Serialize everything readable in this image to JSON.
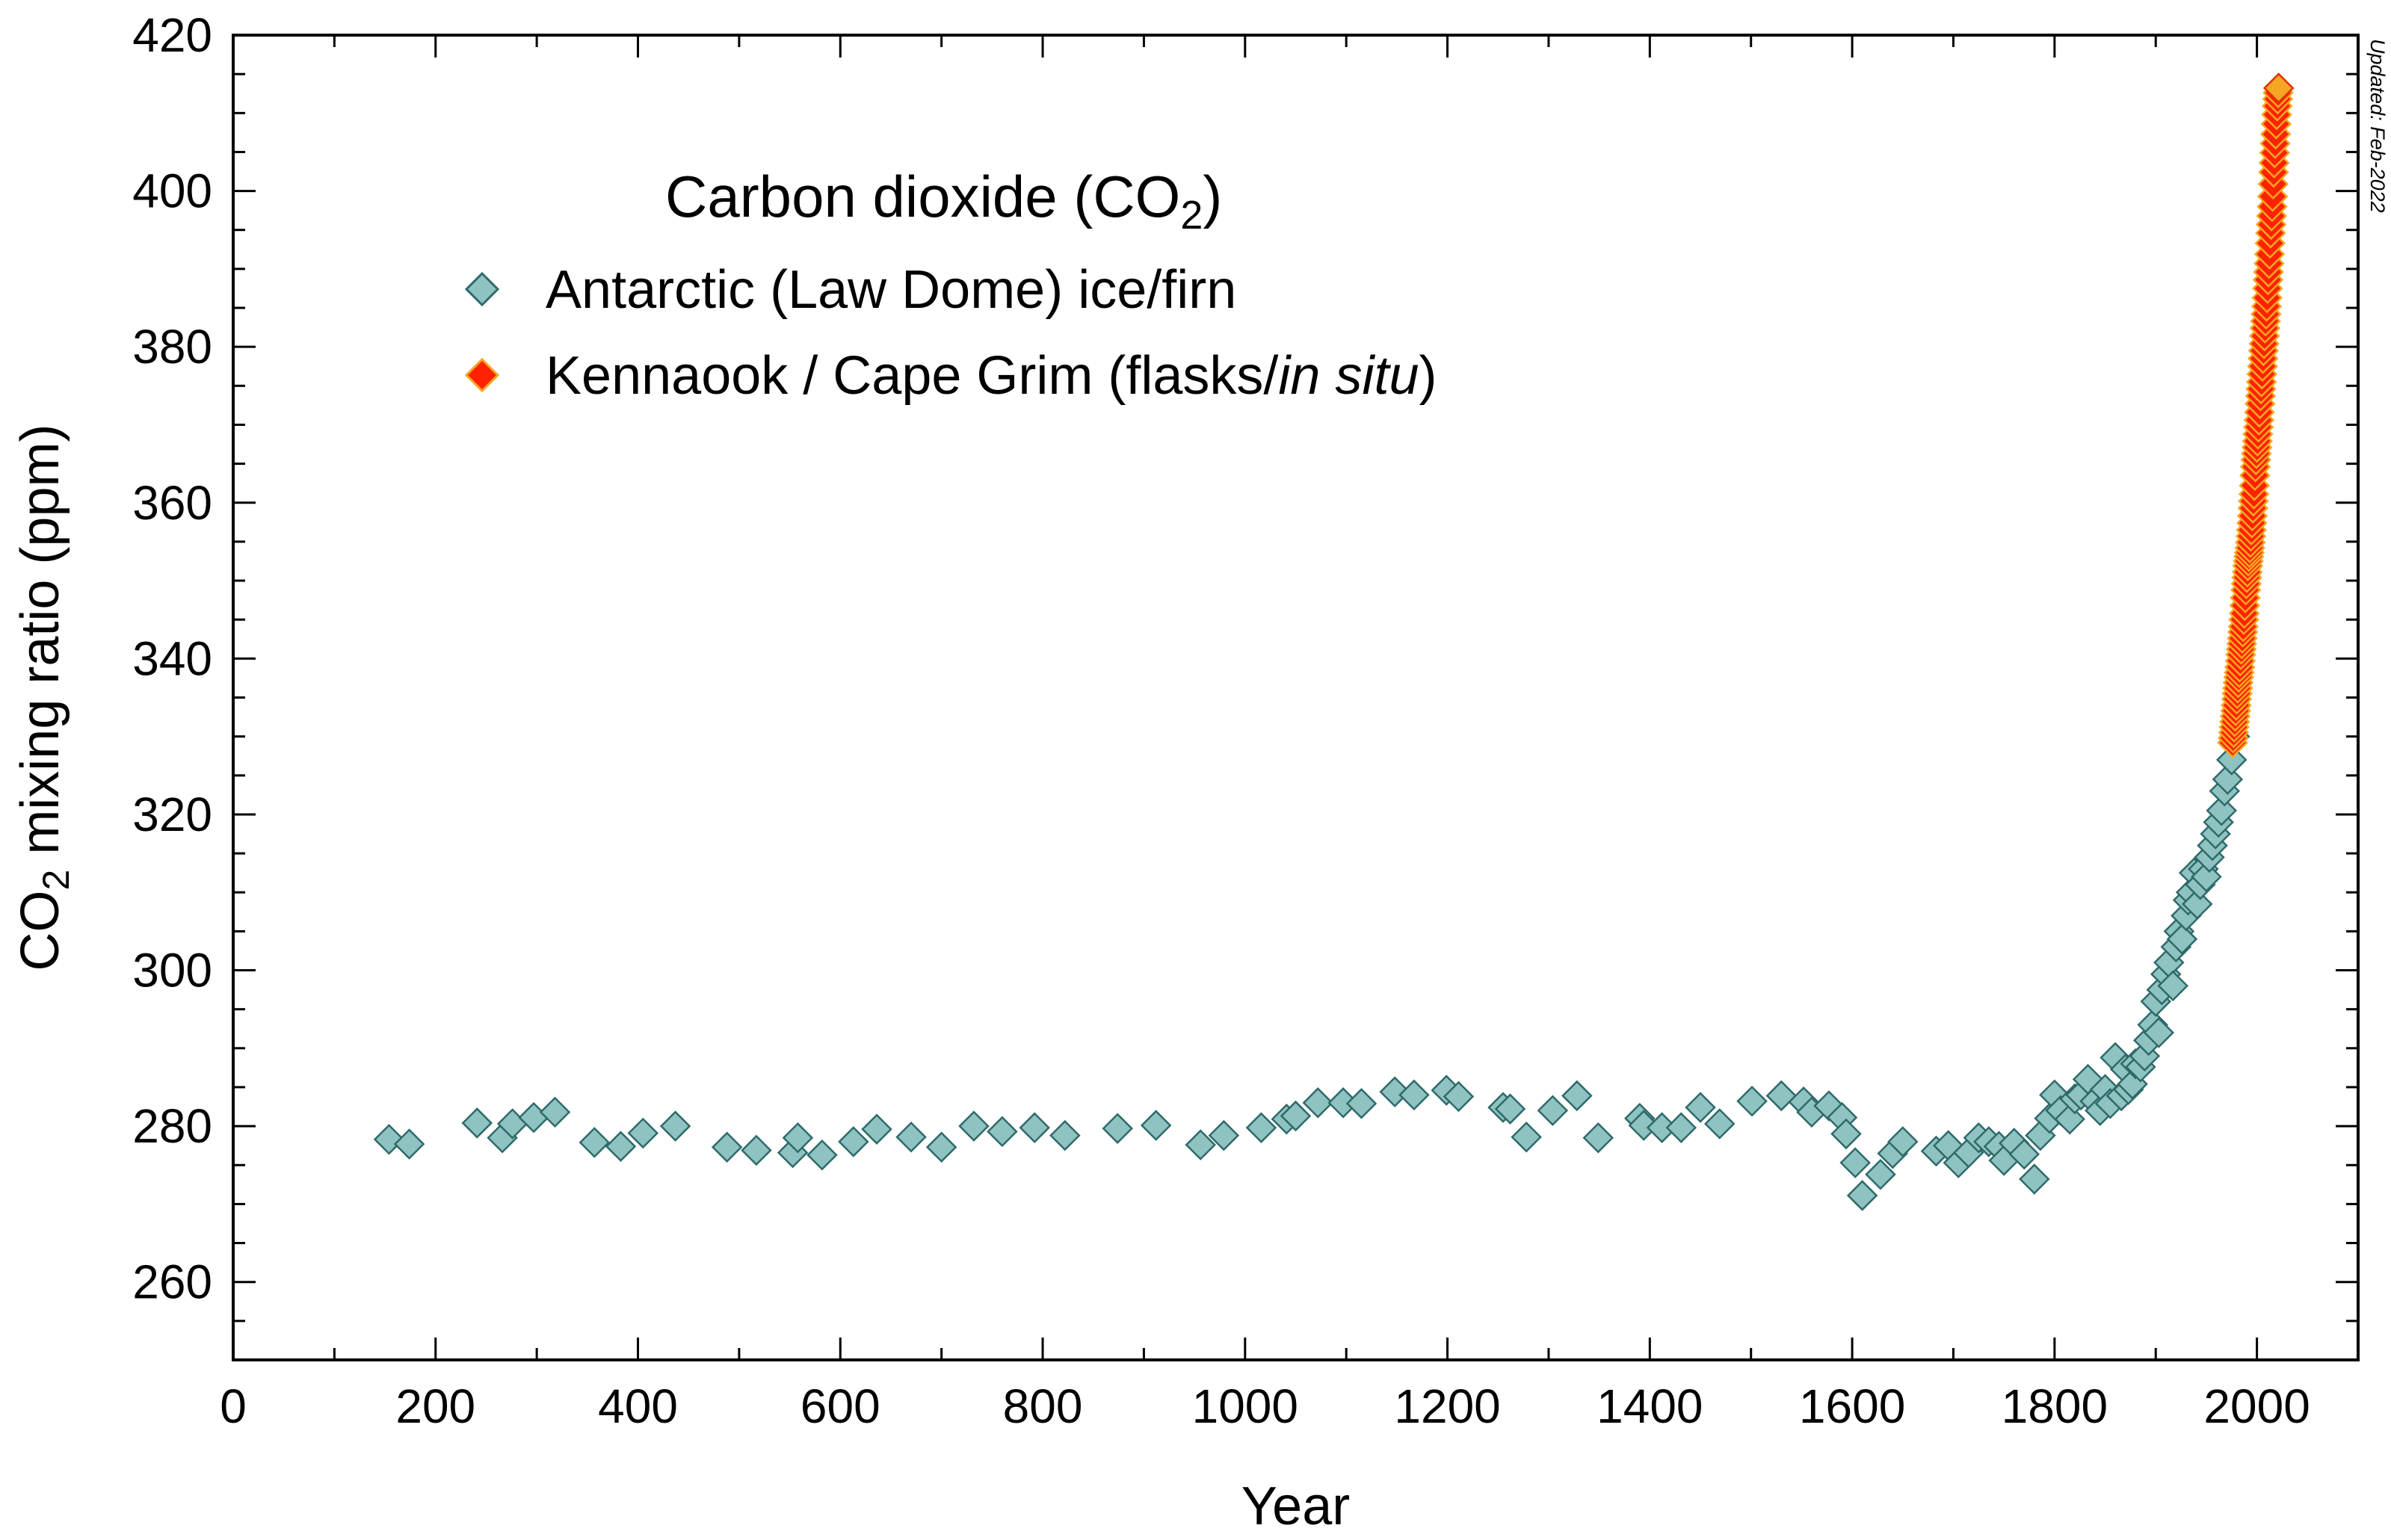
{
  "chart_data": {
    "type": "scatter",
    "xlabel": "Year",
    "ylabel_main": "CO",
    "ylabel_sub": "2",
    "ylabel_rest": " mixing ratio (ppm)",
    "xlim": [
      0,
      2100
    ],
    "ylim": [
      250,
      420
    ],
    "xticks": [
      0,
      200,
      400,
      600,
      800,
      1000,
      1200,
      1400,
      1600,
      1800,
      2000
    ],
    "yticks": [
      260,
      280,
      300,
      320,
      340,
      360,
      380,
      400,
      420
    ],
    "grid": false,
    "legend_position": "top-left",
    "legend_title_main": "Carbon dioxide (CO",
    "legend_title_sub": "2",
    "legend_title_end": ")",
    "updated_note": "Updated: Feb-2022",
    "colors": {
      "lawdome_fill": "#8ec3c1",
      "lawdome_stroke": "#2f6a6a",
      "capegrim_fill": "#ff2200",
      "capegrim_stroke": "#f5a623",
      "capegrim_latest_fill": "#f5a623",
      "capegrim_latest_stroke": "#e03000"
    },
    "series": [
      {
        "name": "Antarctic (Law Dome) ice/firn",
        "marker": "diamond",
        "points": [
          [
            154,
            278.3
          ],
          [
            174,
            277.7
          ],
          [
            241,
            280.4
          ],
          [
            266,
            278.5
          ],
          [
            276,
            280.3
          ],
          [
            297,
            281.1
          ],
          [
            318,
            281.8
          ],
          [
            357,
            277.9
          ],
          [
            383,
            277.4
          ],
          [
            405,
            279.1
          ],
          [
            437,
            280.0
          ],
          [
            488,
            277.3
          ],
          [
            517,
            276.9
          ],
          [
            553,
            276.6
          ],
          [
            558,
            278.5
          ],
          [
            582,
            276.3
          ],
          [
            613,
            278.0
          ],
          [
            636,
            279.6
          ],
          [
            670,
            278.6
          ],
          [
            700,
            277.3
          ],
          [
            732,
            280.0
          ],
          [
            760,
            279.3
          ],
          [
            792,
            279.8
          ],
          [
            822,
            278.8
          ],
          [
            874,
            279.7
          ],
          [
            912,
            280.1
          ],
          [
            956,
            277.6
          ],
          [
            979,
            278.8
          ],
          [
            1016,
            279.8
          ],
          [
            1041,
            280.9
          ],
          [
            1050,
            281.3
          ],
          [
            1072,
            283.0
          ],
          [
            1097,
            283.0
          ],
          [
            1115,
            282.9
          ],
          [
            1148,
            284.4
          ],
          [
            1167,
            284.0
          ],
          [
            1199,
            284.6
          ],
          [
            1211,
            283.8
          ],
          [
            1255,
            282.4
          ],
          [
            1262,
            282.2
          ],
          [
            1278,
            278.6
          ],
          [
            1304,
            282.0
          ],
          [
            1328,
            283.9
          ],
          [
            1349,
            278.5
          ],
          [
            1390,
            281.0
          ],
          [
            1394,
            280.1
          ],
          [
            1412,
            279.8
          ],
          [
            1431,
            279.8
          ],
          [
            1450,
            282.4
          ],
          [
            1469,
            280.3
          ],
          [
            1501,
            283.2
          ],
          [
            1530,
            283.9
          ],
          [
            1552,
            283.1
          ],
          [
            1560,
            281.8
          ],
          [
            1577,
            282.6
          ],
          [
            1590,
            281.1
          ],
          [
            1594,
            279.0
          ],
          [
            1603,
            275.3
          ],
          [
            1610,
            271.1
          ],
          [
            1628,
            273.8
          ],
          [
            1640,
            276.5
          ],
          [
            1650,
            278.0
          ],
          [
            1683,
            276.8
          ],
          [
            1695,
            277.5
          ],
          [
            1705,
            275.3
          ],
          [
            1715,
            276.6
          ],
          [
            1725,
            278.5
          ],
          [
            1735,
            278.0
          ],
          [
            1745,
            277.4
          ],
          [
            1750,
            275.6
          ],
          [
            1760,
            277.8
          ],
          [
            1770,
            276.4
          ],
          [
            1780,
            273.2
          ],
          [
            1786,
            278.8
          ],
          [
            1795,
            281.0
          ],
          [
            1800,
            284.0
          ],
          [
            1806,
            282.0
          ],
          [
            1815,
            280.9
          ],
          [
            1820,
            283.5
          ],
          [
            1826,
            284.0
          ],
          [
            1833,
            286.0
          ],
          [
            1840,
            283.2
          ],
          [
            1845,
            282.0
          ],
          [
            1850,
            284.7
          ],
          [
            1855,
            282.9
          ],
          [
            1860,
            288.8
          ],
          [
            1866,
            283.9
          ],
          [
            1870,
            287.3
          ],
          [
            1873,
            284.7
          ],
          [
            1877,
            285.4
          ],
          [
            1880,
            288.0
          ],
          [
            1885,
            287.6
          ],
          [
            1889,
            289.0
          ],
          [
            1893,
            291.0
          ],
          [
            1897,
            293.0
          ],
          [
            1900,
            296.0
          ],
          [
            1903,
            292.0
          ],
          [
            1906,
            297.5
          ],
          [
            1910,
            299.5
          ],
          [
            1913,
            301.0
          ],
          [
            1917,
            298.0
          ],
          [
            1920,
            303.0
          ],
          [
            1923,
            305.0
          ],
          [
            1926,
            304.0
          ],
          [
            1930,
            307.0
          ],
          [
            1932,
            309.0
          ],
          [
            1935,
            310.0
          ],
          [
            1938,
            312.5
          ],
          [
            1941,
            308.5
          ],
          [
            1944,
            311.0
          ],
          [
            1947,
            313.0
          ],
          [
            1950,
            312.0
          ],
          [
            1953,
            314.5
          ],
          [
            1956,
            316.0
          ],
          [
            1959,
            317.5
          ],
          [
            1962,
            319.0
          ],
          [
            1965,
            320.5
          ],
          [
            1968,
            323.0
          ],
          [
            1971,
            324.5
          ],
          [
            1975,
            327.0
          ],
          [
            1978,
            330.0
          ]
        ]
      },
      {
        "name": "Kennaook / Cape Grim (flasks/in situ)",
        "name_pre": "Kennaook / Cape Grim (flasks/",
        "name_italic": "in situ",
        "name_post": ")",
        "marker": "diamond",
        "points": [
          [
            1976.0,
            329.2
          ],
          [
            1976.5,
            329.8
          ],
          [
            1977.0,
            330.5
          ],
          [
            1977.5,
            331.2
          ],
          [
            1978.0,
            331.9
          ],
          [
            1978.5,
            332.6
          ],
          [
            1979.0,
            333.3
          ],
          [
            1979.5,
            334.0
          ],
          [
            1980.0,
            334.8
          ],
          [
            1980.5,
            335.5
          ],
          [
            1981.0,
            336.2
          ],
          [
            1981.5,
            336.9
          ],
          [
            1982.0,
            337.6
          ],
          [
            1982.5,
            338.2
          ],
          [
            1983.0,
            338.9
          ],
          [
            1983.5,
            339.7
          ],
          [
            1984.0,
            340.5
          ],
          [
            1984.5,
            341.2
          ],
          [
            1985.0,
            341.9
          ],
          [
            1985.5,
            342.6
          ],
          [
            1986.0,
            343.4
          ],
          [
            1986.5,
            344.1
          ],
          [
            1987.0,
            345.0
          ],
          [
            1987.5,
            345.8
          ],
          [
            1988.0,
            346.8
          ],
          [
            1988.5,
            347.8
          ],
          [
            1989.0,
            348.8
          ],
          [
            1989.5,
            349.6
          ],
          [
            1990.0,
            350.4
          ],
          [
            1990.5,
            351.1
          ],
          [
            1991.0,
            351.9
          ],
          [
            1991.5,
            352.5
          ],
          [
            1992.0,
            353.1
          ],
          [
            1992.5,
            353.6
          ],
          [
            1993.0,
            354.2
          ],
          [
            1993.5,
            354.9
          ],
          [
            1994.0,
            355.7
          ],
          [
            1994.5,
            356.5
          ],
          [
            1995.0,
            357.4
          ],
          [
            1995.5,
            358.3
          ],
          [
            1996.0,
            359.3
          ],
          [
            1996.5,
            360.2
          ],
          [
            1997.0,
            361.1
          ],
          [
            1997.5,
            362.2
          ],
          [
            1998.0,
            363.5
          ],
          [
            1998.5,
            364.6
          ],
          [
            1999.0,
            365.5
          ],
          [
            1999.5,
            366.3
          ],
          [
            2000.0,
            367.1
          ],
          [
            2000.5,
            367.9
          ],
          [
            2001.0,
            368.8
          ],
          [
            2001.5,
            369.7
          ],
          [
            2002.0,
            370.6
          ],
          [
            2002.5,
            371.6
          ],
          [
            2003.0,
            372.7
          ],
          [
            2003.5,
            373.7
          ],
          [
            2004.0,
            374.6
          ],
          [
            2004.5,
            375.5
          ],
          [
            2005.0,
            376.5
          ],
          [
            2005.5,
            377.5
          ],
          [
            2006.0,
            378.5
          ],
          [
            2006.5,
            379.5
          ],
          [
            2007.0,
            380.4
          ],
          [
            2007.5,
            381.4
          ],
          [
            2008.0,
            382.4
          ],
          [
            2008.5,
            383.3
          ],
          [
            2009.0,
            384.2
          ],
          [
            2009.5,
            385.2
          ],
          [
            2010.0,
            386.3
          ],
          [
            2010.5,
            387.5
          ],
          [
            2011.0,
            388.6
          ],
          [
            2011.5,
            389.6
          ],
          [
            2012.0,
            390.7
          ],
          [
            2012.5,
            391.9
          ],
          [
            2013.0,
            393.3
          ],
          [
            2013.5,
            394.6
          ],
          [
            2014.0,
            395.7
          ],
          [
            2014.5,
            396.8
          ],
          [
            2015.0,
            398.0
          ],
          [
            2015.5,
            399.3
          ],
          [
            2016.0,
            400.9
          ],
          [
            2016.5,
            402.4
          ],
          [
            2017.0,
            403.6
          ],
          [
            2017.5,
            404.9
          ],
          [
            2018.0,
            406.1
          ],
          [
            2018.5,
            407.3
          ],
          [
            2019.0,
            408.6
          ],
          [
            2019.5,
            409.8
          ],
          [
            2020.0,
            410.9
          ],
          [
            2020.5,
            411.8
          ],
          [
            2021.0,
            412.6
          ],
          [
            2021.5,
            413.2
          ]
        ]
      }
    ]
  }
}
